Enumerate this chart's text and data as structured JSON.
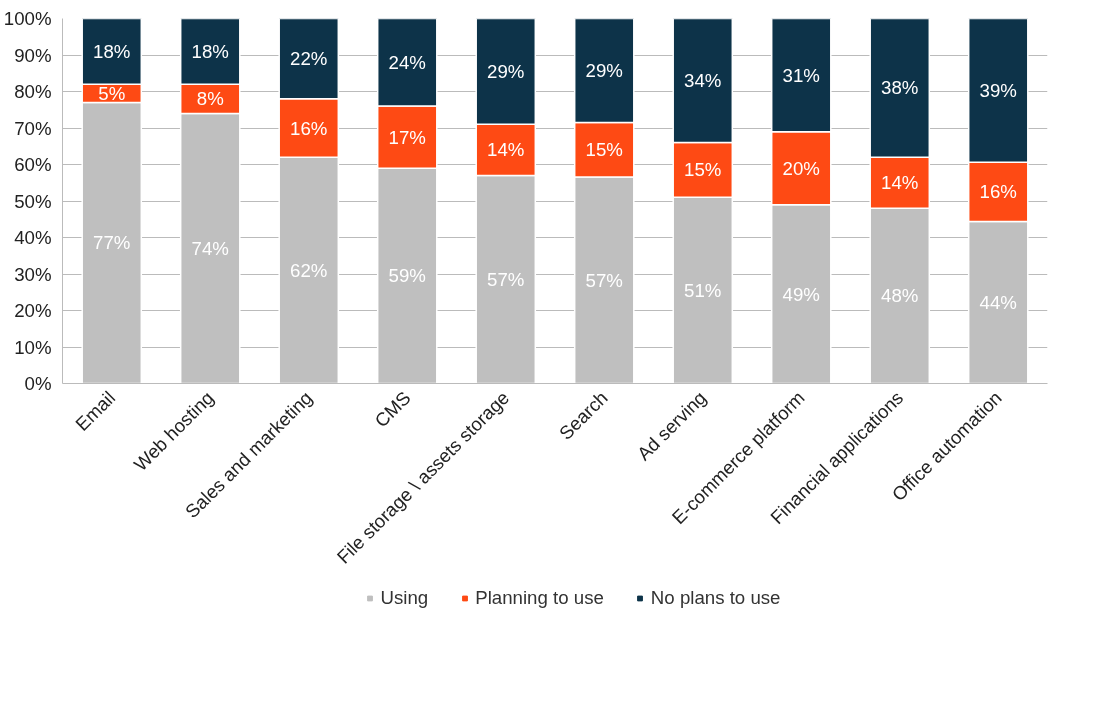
{
  "chart_data": {
    "type": "bar",
    "stacked": true,
    "categories": [
      "Email",
      "Web hosting",
      "Sales and marketing",
      "CMS",
      "File storage \\ assets storage",
      "Search",
      "Ad serving",
      "E-commerce platform",
      "Financial applications",
      "Office automation"
    ],
    "series": [
      {
        "name": "Using",
        "color": "#bfbfbf",
        "values": [
          77,
          74,
          62,
          59,
          57,
          56.6,
          51,
          49,
          48,
          44.4
        ],
        "value_labels": [
          "77%",
          "74%",
          "62%",
          "59%",
          "57%",
          "57%",
          "51%",
          "49%",
          "48%",
          "44%"
        ]
      },
      {
        "name": "Planning to use",
        "color": "#fe4a14",
        "values": [
          5,
          8,
          16,
          17,
          14,
          14.9,
          15,
          20,
          14,
          16.2
        ],
        "value_labels": [
          "5%",
          "8%",
          "16%",
          "17%",
          "14%",
          "15%",
          "15%",
          "20%",
          "14%",
          "16%"
        ]
      },
      {
        "name": "No plans to use",
        "color": "#0d3349",
        "values": [
          18,
          18,
          22,
          24,
          29,
          28.5,
          34,
          31,
          38,
          39.4
        ],
        "value_labels": [
          "18%",
          "18%",
          "22%",
          "24%",
          "29%",
          "29%",
          "34%",
          "31%",
          "38%",
          "39%"
        ]
      }
    ],
    "ylim": [
      0,
      100
    ],
    "yticks": [
      {
        "value": 0,
        "label": "0%"
      },
      {
        "value": 10,
        "label": "10%"
      },
      {
        "value": 20,
        "label": "20%"
      },
      {
        "value": 30,
        "label": "30%"
      },
      {
        "value": 40,
        "label": "40%"
      },
      {
        "value": 50,
        "label": "50%"
      },
      {
        "value": 60,
        "label": "60%"
      },
      {
        "value": 70,
        "label": "70%"
      },
      {
        "value": 80,
        "label": "80%"
      },
      {
        "value": 90,
        "label": "90%"
      },
      {
        "value": 100,
        "label": "100%"
      }
    ],
    "grid": "y",
    "legend": "bottom"
  }
}
